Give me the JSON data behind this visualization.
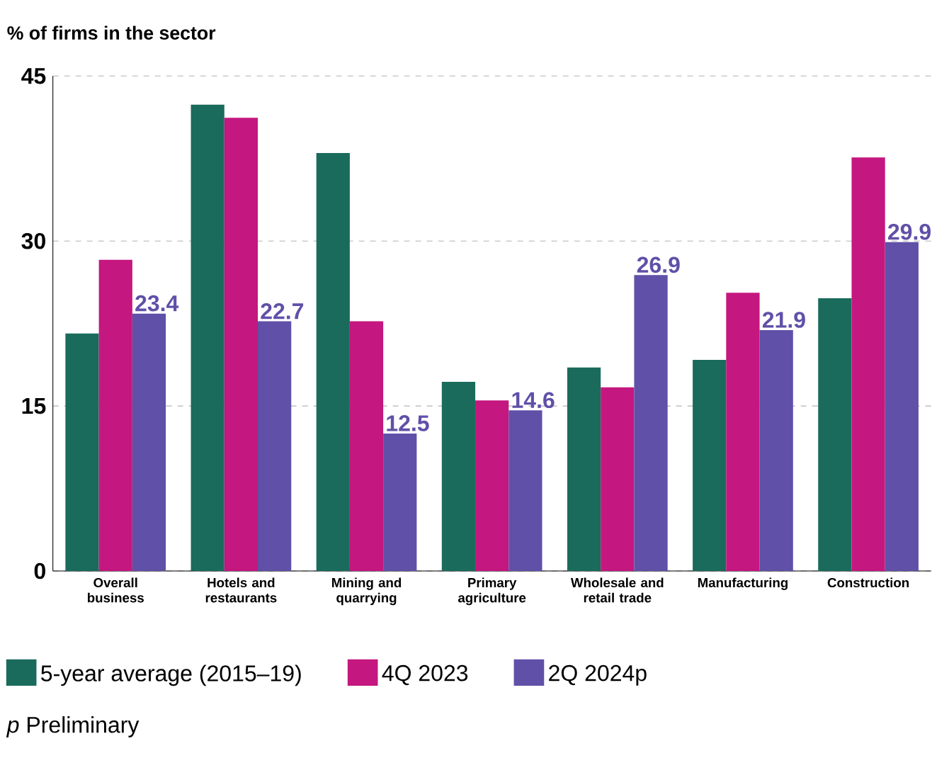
{
  "chart_data": {
    "type": "bar",
    "ylabel": "% of firms in the sector",
    "categories": [
      "Overall business",
      "Hotels and restaurants",
      "Mining and quarrying",
      "Primary agriculture",
      "Wholesale and retail trade",
      "Manufacturing",
      "Construction"
    ],
    "series": [
      {
        "name": "5-year average (2015–19)",
        "color": "#1a6b5c",
        "values": [
          21.6,
          42.4,
          38.0,
          17.2,
          18.5,
          19.2,
          24.8
        ]
      },
      {
        "name": "4Q 2023",
        "color": "#c4177f",
        "values": [
          28.3,
          41.2,
          22.7,
          15.5,
          16.7,
          25.3,
          37.6
        ]
      },
      {
        "name": "2Q 2024p",
        "color": "#6050a8",
        "values": [
          23.4,
          22.7,
          12.5,
          14.6,
          26.9,
          21.9,
          29.9
        ],
        "value_labels": [
          "23.4",
          "22.7",
          "12.5",
          "14.6",
          "26.9",
          "21.9",
          "29.9"
        ]
      }
    ],
    "ylim": [
      0,
      45
    ],
    "yticks": [
      0,
      15,
      30,
      45
    ],
    "grid": "y",
    "legend": "bottom",
    "annotations": [
      "*p* Preliminary"
    ]
  }
}
